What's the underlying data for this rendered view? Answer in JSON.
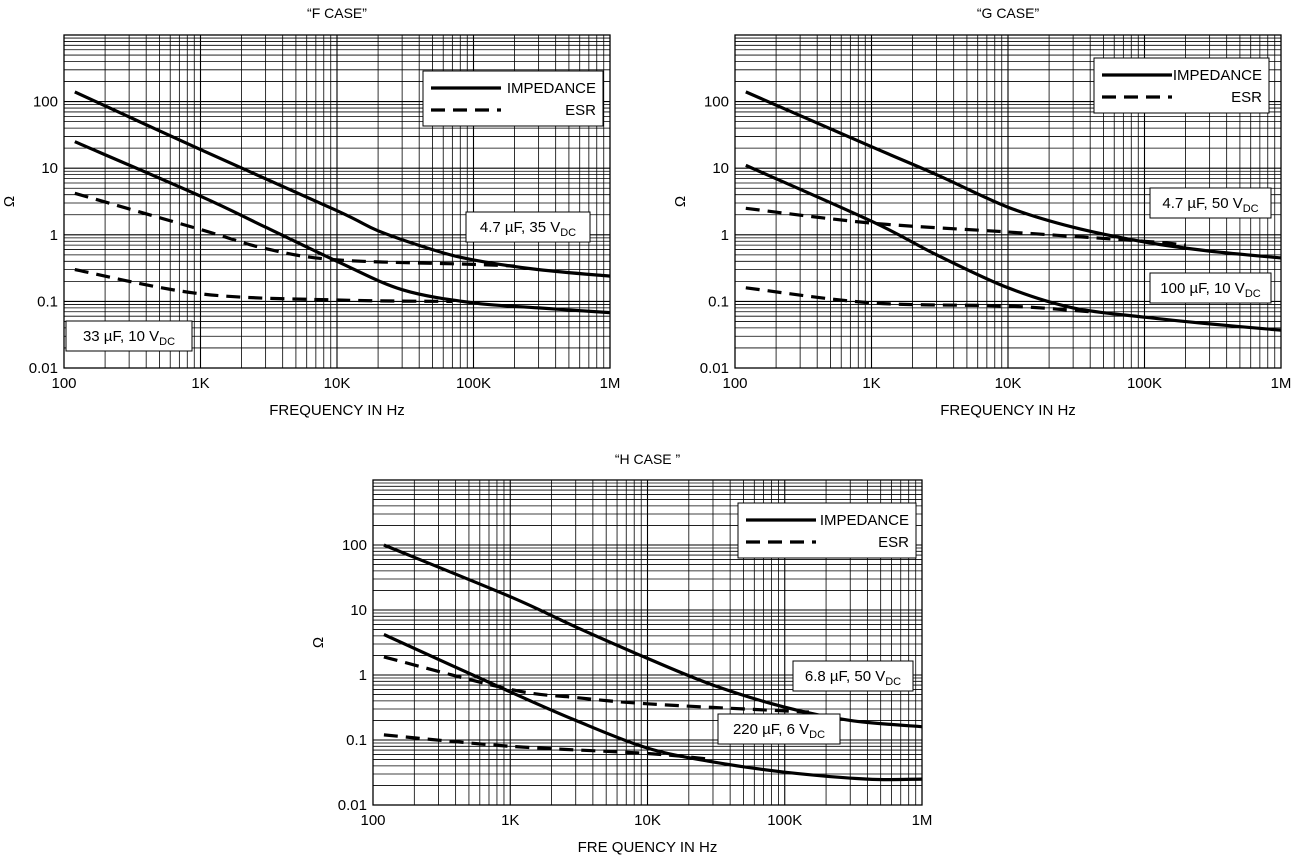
{
  "chart_data": [
    {
      "type": "line",
      "title": "“F CASE”",
      "xlabel": "FREQUENCY IN Hz",
      "ylabel": "Ω",
      "x_scale": "log",
      "y_scale": "log",
      "xlim": [
        100,
        1000000
      ],
      "ylim": [
        0.01,
        1000
      ],
      "x_ticks": [
        "100",
        "1K",
        "10K",
        "100K",
        "1M"
      ],
      "y_ticks": [
        "0.01",
        "0.1",
        "1",
        "10",
        "100"
      ],
      "grid": true,
      "legend": {
        "position": "top-right",
        "entries": [
          "IMPEDANCE",
          "ESR"
        ]
      },
      "series": [
        {
          "group": "4.7 µF, 35 V",
          "kind": "impedance",
          "points": [
            [
              120,
              140
            ],
            [
              1000,
              19
            ],
            [
              10000,
              2.3
            ],
            [
              20000,
              1.15
            ],
            [
              50000,
              0.6
            ],
            [
              100000,
              0.42
            ],
            [
              300000,
              0.3
            ],
            [
              1000000,
              0.24
            ]
          ]
        },
        {
          "group": "4.7 µF, 35 V",
          "kind": "esr",
          "points": [
            [
              120,
              4.2
            ],
            [
              1000,
              1.2
            ],
            [
              3000,
              0.62
            ],
            [
              10000,
              0.42
            ],
            [
              100000,
              0.36
            ],
            [
              200000,
              0.34
            ]
          ]
        },
        {
          "group": "33 µF, 10 V",
          "kind": "impedance",
          "points": [
            [
              120,
              25
            ],
            [
              1000,
              3.8
            ],
            [
              3000,
              1.3
            ],
            [
              10000,
              0.4
            ],
            [
              30000,
              0.15
            ],
            [
              100000,
              0.095
            ],
            [
              300000,
              0.08
            ],
            [
              1000000,
              0.068
            ]
          ]
        },
        {
          "group": "33 µF, 10 V",
          "kind": "esr",
          "points": [
            [
              120,
              0.3
            ],
            [
              1000,
              0.13
            ],
            [
              10000,
              0.105
            ],
            [
              70000,
              0.1
            ]
          ]
        }
      ],
      "labels": [
        {
          "main": "4.7 µF, 35 V",
          "sub": "DC"
        },
        {
          "main": "33 µF, 10 V",
          "sub": "DC"
        }
      ]
    },
    {
      "type": "line",
      "title": "“G CASE”",
      "xlabel": "FREQUENCY IN Hz",
      "ylabel": "Ω",
      "x_scale": "log",
      "y_scale": "log",
      "xlim": [
        100,
        1000000
      ],
      "ylim": [
        0.01,
        1000
      ],
      "x_ticks": [
        "100",
        "1K",
        "10K",
        "100K",
        "1M"
      ],
      "y_ticks": [
        "0.01",
        "0.1",
        "1",
        "10",
        "100"
      ],
      "grid": true,
      "legend": {
        "position": "top-right",
        "entries": [
          "IMPEDANCE",
          "ESR"
        ]
      },
      "series": [
        {
          "group": "4.7 µF, 50 V",
          "kind": "impedance",
          "points": [
            [
              120,
              140
            ],
            [
              1000,
              21
            ],
            [
              3000,
              8
            ],
            [
              10000,
              2.6
            ],
            [
              30000,
              1.3
            ],
            [
              100000,
              0.78
            ],
            [
              300000,
              0.57
            ],
            [
              1000000,
              0.45
            ]
          ]
        },
        {
          "group": "4.7 µF, 50 V",
          "kind": "esr",
          "points": [
            [
              120,
              2.5
            ],
            [
              1000,
              1.5
            ],
            [
              10000,
              1.1
            ],
            [
              100000,
              0.8
            ],
            [
              200000,
              0.7
            ]
          ]
        },
        {
          "group": "100 µF, 10 V",
          "kind": "impedance",
          "points": [
            [
              120,
              11
            ],
            [
              1000,
              1.6
            ],
            [
              3000,
              0.5
            ],
            [
              10000,
              0.16
            ],
            [
              30000,
              0.08
            ],
            [
              100000,
              0.058
            ],
            [
              300000,
              0.046
            ],
            [
              1000000,
              0.037
            ]
          ]
        },
        {
          "group": "100 µF, 10 V",
          "kind": "esr",
          "points": [
            [
              120,
              0.16
            ],
            [
              1000,
              0.095
            ],
            [
              10000,
              0.085
            ],
            [
              40000,
              0.07
            ]
          ]
        }
      ],
      "labels": [
        {
          "main": "4.7 µF, 50 V",
          "sub": "DC"
        },
        {
          "main": "100 µF, 10 V",
          "sub": "DC"
        }
      ]
    },
    {
      "type": "line",
      "title": "“H CASE ”",
      "xlabel": "FRE QUENCY IN Hz",
      "ylabel": "Ω",
      "x_scale": "log",
      "y_scale": "log",
      "xlim": [
        100,
        1000000
      ],
      "ylim": [
        0.01,
        1000
      ],
      "x_ticks": [
        "100",
        "1K",
        "10K",
        "100K",
        "1M"
      ],
      "y_ticks": [
        "0.01",
        "0.1",
        "1",
        "10",
        "100"
      ],
      "grid": true,
      "legend": {
        "position": "top-right",
        "entries": [
          "IMPEDANCE",
          "ESR"
        ]
      },
      "series": [
        {
          "group": "6.8 µF, 50 V",
          "kind": "impedance",
          "points": [
            [
              120,
              100
            ],
            [
              1000,
              16
            ],
            [
              3000,
              5.5
            ],
            [
              10000,
              1.8
            ],
            [
              30000,
              0.7
            ],
            [
              100000,
              0.32
            ],
            [
              300000,
              0.2
            ],
            [
              1000000,
              0.16
            ]
          ]
        },
        {
          "group": "6.8 µF, 50 V",
          "kind": "esr",
          "points": [
            [
              120,
              1.9
            ],
            [
              1000,
              0.6
            ],
            [
              3000,
              0.45
            ],
            [
              10000,
              0.36
            ],
            [
              100000,
              0.28
            ],
            [
              150000,
              0.27
            ]
          ]
        },
        {
          "group": "220 µF, 6 V",
          "kind": "impedance",
          "points": [
            [
              120,
              4.2
            ],
            [
              1000,
              0.55
            ],
            [
              3000,
              0.2
            ],
            [
              10000,
              0.075
            ],
            [
              30000,
              0.046
            ],
            [
              100000,
              0.032
            ],
            [
              400000,
              0.025
            ],
            [
              1000000,
              0.025
            ]
          ]
        },
        {
          "group": "220 µF, 6 V",
          "kind": "esr",
          "points": [
            [
              120,
              0.12
            ],
            [
              1000,
              0.08
            ],
            [
              10000,
              0.062
            ],
            [
              30000,
              0.05
            ]
          ]
        }
      ],
      "labels": [
        {
          "main": "6.8 µF, 50 V",
          "sub": "DC"
        },
        {
          "main": "220 µF, 6 V",
          "sub": "DC"
        }
      ]
    }
  ]
}
